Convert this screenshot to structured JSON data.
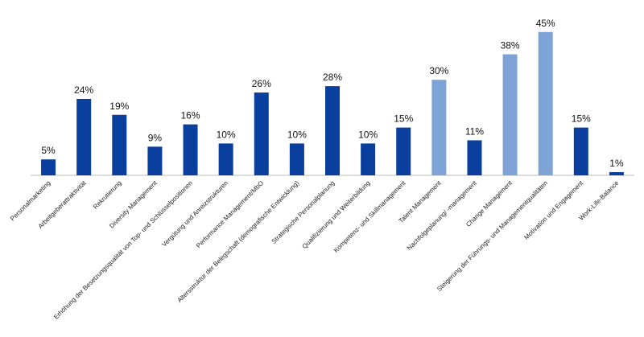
{
  "chart_data": {
    "type": "bar",
    "categories": [
      "Personalmarketing",
      "Arbeitgeberattraktivität",
      "Rekrutierung",
      "Diversity Management",
      "Erhöhung der Besetzungsqualität von Top- und Schlüsselpositionen",
      "Vergütung und Anreizstrukturen",
      "Performance Management/MbO",
      "Altersstruktur der Belegschaft (demografische Entwicklung)",
      "Strategische Personalplanung",
      "Qualifizierung und Weiterbildung",
      "Kompetenz- und Skillmanagement",
      "Talent Management",
      "Nachfolgeplanung/ -management",
      "Change Management",
      "Steigerung der Führungs- und Managementqualitäten",
      "Motivation und Engagement",
      "Work-Life-Balance"
    ],
    "values": [
      5,
      24,
      19,
      9,
      16,
      10,
      26,
      10,
      28,
      10,
      15,
      30,
      11,
      38,
      45,
      15,
      1
    ],
    "value_labels": [
      "5%",
      "24%",
      "19%",
      "9%",
      "16%",
      "10%",
      "26%",
      "10%",
      "28%",
      "10%",
      "15%",
      "30%",
      "11%",
      "38%",
      "45%",
      "15%",
      "1%"
    ],
    "colors": [
      "#0b3f9e",
      "#0b3f9e",
      "#0b3f9e",
      "#0b3f9e",
      "#0b3f9e",
      "#0b3f9e",
      "#0b3f9e",
      "#0b3f9e",
      "#0b3f9e",
      "#0b3f9e",
      "#0b3f9e",
      "#7ea3d6",
      "#0b3f9e",
      "#7ea3d6",
      "#7ea3d6",
      "#0b3f9e",
      "#0b3f9e"
    ]
  }
}
